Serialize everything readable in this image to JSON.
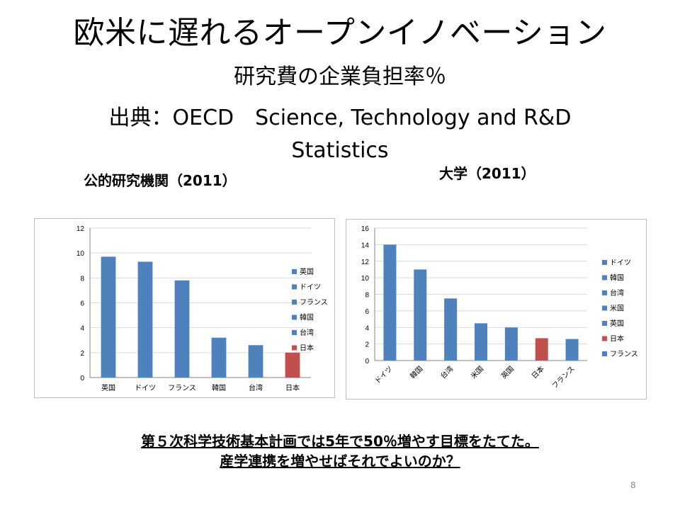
{
  "slide": {
    "title": "欧米に遅れるオープンイノベーション",
    "subtitle": "研究費の企業負担率％",
    "source": "出典：OECD　Science, Technology and R&D Statistics",
    "note_line1": "第５次科学技術基本計画では5年で50％増やす目標をたてた。",
    "note_line2": "産学連携を増やせばそれでよいのか？",
    "page_number": "8"
  },
  "colors": {
    "blue": "#4f81bd",
    "red": "#c0504d",
    "grid": "#d9d9d9",
    "axis": "#868686"
  },
  "chart_data": [
    {
      "type": "bar",
      "title": "公的研究機関（2011）",
      "categories": [
        "英国",
        "ドイツ",
        "フランス",
        "韓国",
        "台湾",
        "日本"
      ],
      "values": [
        9.7,
        9.3,
        7.8,
        3.2,
        2.6,
        2.0
      ],
      "bar_colors": [
        "#4f81bd",
        "#4f81bd",
        "#4f81bd",
        "#4f81bd",
        "#4f81bd",
        "#c0504d"
      ],
      "legend": [
        "英国",
        "ドイツ",
        "フランス",
        "韓国",
        "台湾",
        "日本"
      ],
      "legend_position": "right",
      "ylim": [
        0,
        12
      ],
      "yticks": [
        0,
        2,
        4,
        6,
        8,
        10,
        12
      ],
      "grid": true,
      "xlabel_rotation": 0
    },
    {
      "type": "bar",
      "title": "大学（2011）",
      "categories": [
        "ドイツ",
        "韓国",
        "台湾",
        "米国",
        "英国",
        "日本",
        "フランス"
      ],
      "values": [
        14.0,
        11.0,
        7.5,
        4.5,
        4.0,
        2.7,
        2.6
      ],
      "bar_colors": [
        "#4f81bd",
        "#4f81bd",
        "#4f81bd",
        "#4f81bd",
        "#4f81bd",
        "#c0504d",
        "#4f81bd"
      ],
      "legend": [
        "ドイツ",
        "韓国",
        "台湾",
        "米国",
        "英国",
        "日本",
        "フランス"
      ],
      "legend_position": "right",
      "ylim": [
        0,
        16
      ],
      "yticks": [
        0,
        2,
        4,
        6,
        8,
        10,
        12,
        14,
        16
      ],
      "grid": true,
      "xlabel_rotation": -45
    }
  ]
}
